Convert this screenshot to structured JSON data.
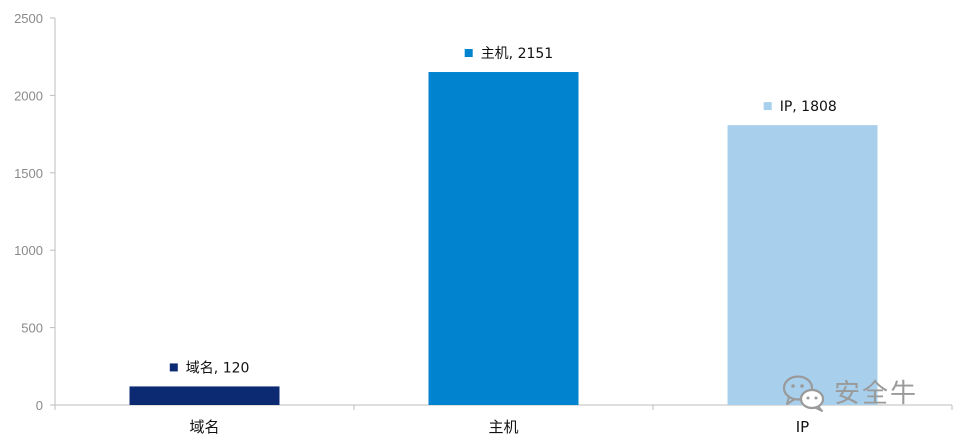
{
  "chart_data": {
    "type": "bar",
    "categories": [
      "域名",
      "主机",
      "IP"
    ],
    "values": [
      120,
      2151,
      1808
    ],
    "colors": [
      "#0b2a72",
      "#0283cf",
      "#a8d0ec"
    ],
    "data_labels": [
      "域名, 120",
      "主机, 2151",
      "IP, 1808"
    ],
    "yticks": [
      "0",
      "500",
      "1000",
      "1500",
      "2000",
      "2500"
    ],
    "ylim": [
      0,
      2500
    ],
    "grid": false,
    "legend": "inline-with-data-labels"
  },
  "watermark": {
    "icon": "wechat-icon",
    "text": "安全牛"
  }
}
